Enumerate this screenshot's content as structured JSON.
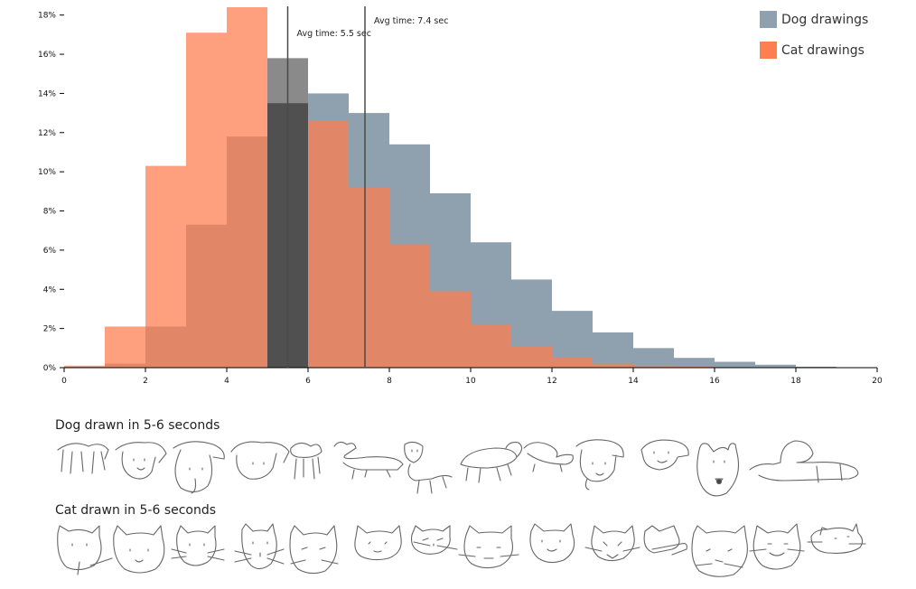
{
  "chart_data": {
    "type": "bar",
    "x_ticks": [
      0,
      2,
      4,
      6,
      8,
      10,
      12,
      14,
      16,
      18,
      20
    ],
    "y_ticks": [
      "0%",
      "2%",
      "4%",
      "6%",
      "8%",
      "10%",
      "12%",
      "14%",
      "16%",
      "18%"
    ],
    "xlim": [
      0,
      20
    ],
    "ylim": [
      0,
      18.4
    ],
    "bins": [
      0,
      1,
      2,
      3,
      4,
      5,
      6,
      7,
      8,
      9,
      10,
      11,
      12,
      13,
      14,
      15,
      16,
      17,
      18,
      19,
      20
    ],
    "series": [
      {
        "name": "Dog drawings",
        "color": "#8fa1ae",
        "values": [
          0.05,
          0.2,
          2.1,
          7.3,
          11.8,
          15.8,
          14.0,
          13.0,
          11.4,
          8.9,
          6.4,
          4.5,
          2.9,
          1.8,
          1.0,
          0.5,
          0.3,
          0.15,
          0.05,
          0,
          0
        ]
      },
      {
        "name": "Cat drawings",
        "color": "#fd7e4f",
        "values": [
          0.1,
          2.1,
          10.3,
          17.1,
          18.4,
          13.5,
          12.6,
          9.2,
          6.3,
          3.9,
          2.2,
          1.1,
          0.5,
          0.2,
          0.1,
          0.05,
          0,
          0,
          0,
          0,
          0
        ]
      }
    ],
    "avg_lines": [
      {
        "x": 5.5,
        "label": "Avg time: 5.5 sec"
      },
      {
        "x": 7.4,
        "label": "Avg time: 7.4 sec"
      }
    ],
    "highlight_bin": [
      5,
      6
    ],
    "legend": "top-right",
    "grid": false
  },
  "sections": {
    "dog_title": "Dog drawn in 5-6 seconds",
    "cat_title": "Cat drawn in 5-6 seconds"
  }
}
